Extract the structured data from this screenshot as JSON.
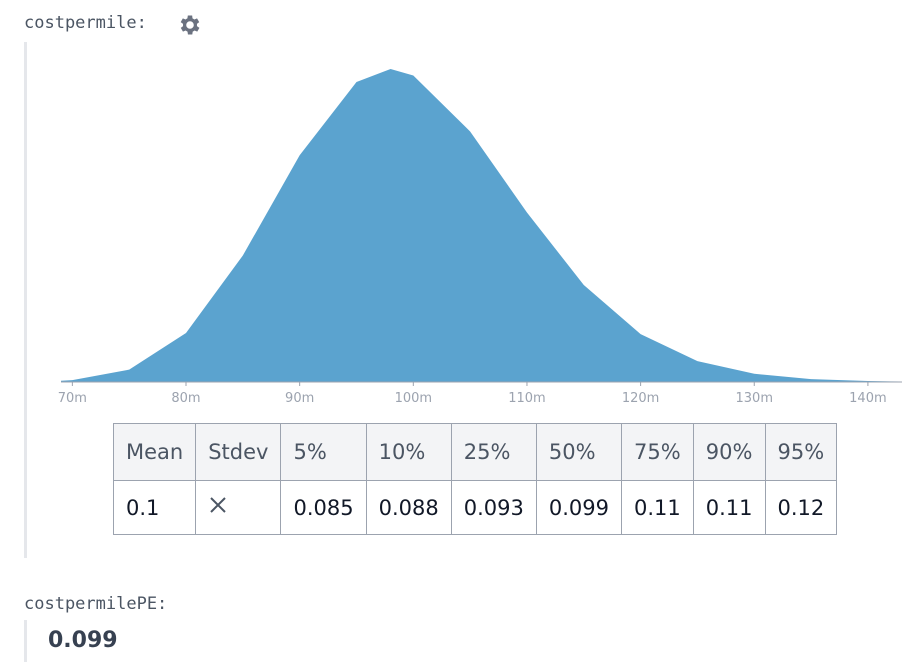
{
  "label": "costpermile:",
  "chart_data": {
    "type": "area",
    "x": [
      0.069,
      0.07,
      0.075,
      0.08,
      0.085,
      0.09,
      0.095,
      0.098,
      0.1,
      0.105,
      0.11,
      0.115,
      0.12,
      0.125,
      0.13,
      0.135,
      0.14,
      0.143
    ],
    "values": [
      0.15,
      0.23,
      1.53,
      6.05,
      15.6,
      27.96,
      37.0,
      38.6,
      37.8,
      30.9,
      20.9,
      11.96,
      5.91,
      2.58,
      1.01,
      0.36,
      0.117,
      0.058
    ],
    "color": "#5ba3cf",
    "xlim": [
      0.069,
      0.143
    ],
    "xticks": [
      {
        "value": 0.07,
        "label": "70m"
      },
      {
        "value": 0.08,
        "label": "80m"
      },
      {
        "value": 0.09,
        "label": "90m"
      },
      {
        "value": 0.1,
        "label": "100m"
      },
      {
        "value": 0.11,
        "label": "110m"
      },
      {
        "value": 0.12,
        "label": "120m"
      },
      {
        "value": 0.13,
        "label": "130m"
      },
      {
        "value": 0.14,
        "label": "140m"
      }
    ]
  },
  "table": {
    "header": [
      "Mean",
      "Stdev",
      "5%",
      "10%",
      "25%",
      "50%",
      "75%",
      "90%",
      "95%"
    ],
    "rows": [
      [
        0.1,
        null,
        0.085,
        0.088,
        0.093,
        0.099,
        0.11,
        0.11,
        0.12
      ]
    ]
  },
  "result": {
    "label": "costpermilePE:",
    "value": 0.099
  }
}
